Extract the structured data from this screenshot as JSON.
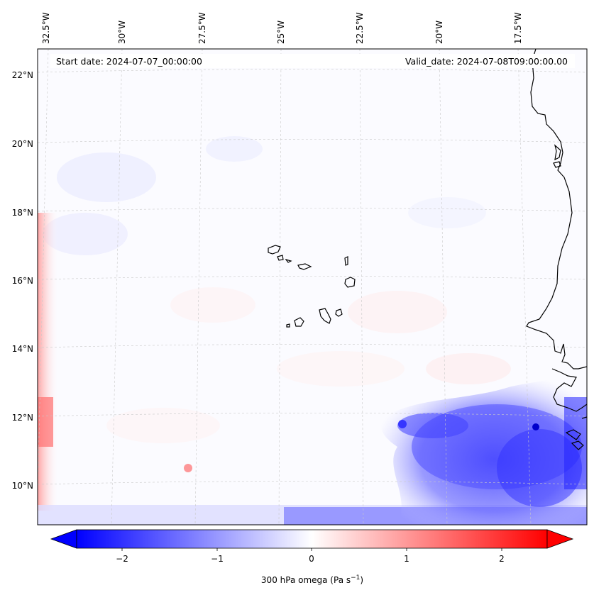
{
  "header": {
    "start_date": "Start date: 2024-07-07_00:00:00",
    "valid_date": "Valid_date: 2024-07-08T09:00:00.00"
  },
  "lon_labels": [
    "32.5°W",
    "30°W",
    "27.5°W",
    "25°W",
    "22.5°W",
    "20°W",
    "17.5°W"
  ],
  "lat_labels": [
    "22°N",
    "20°N",
    "18°N",
    "16°N",
    "14°N",
    "12°N",
    "10°N"
  ],
  "colorbar": {
    "tick_labels": [
      "−2",
      "−1",
      "0",
      "1",
      "2"
    ],
    "label_main": "300 hPa omega (Pa s",
    "label_sup": "−1",
    "label_end": ")",
    "range": [
      -2.5,
      2.5
    ]
  },
  "colors": {
    "negative": "#0000ff",
    "positive": "#ff0000",
    "neutral": "#ffffff",
    "coast": "#000000"
  }
}
